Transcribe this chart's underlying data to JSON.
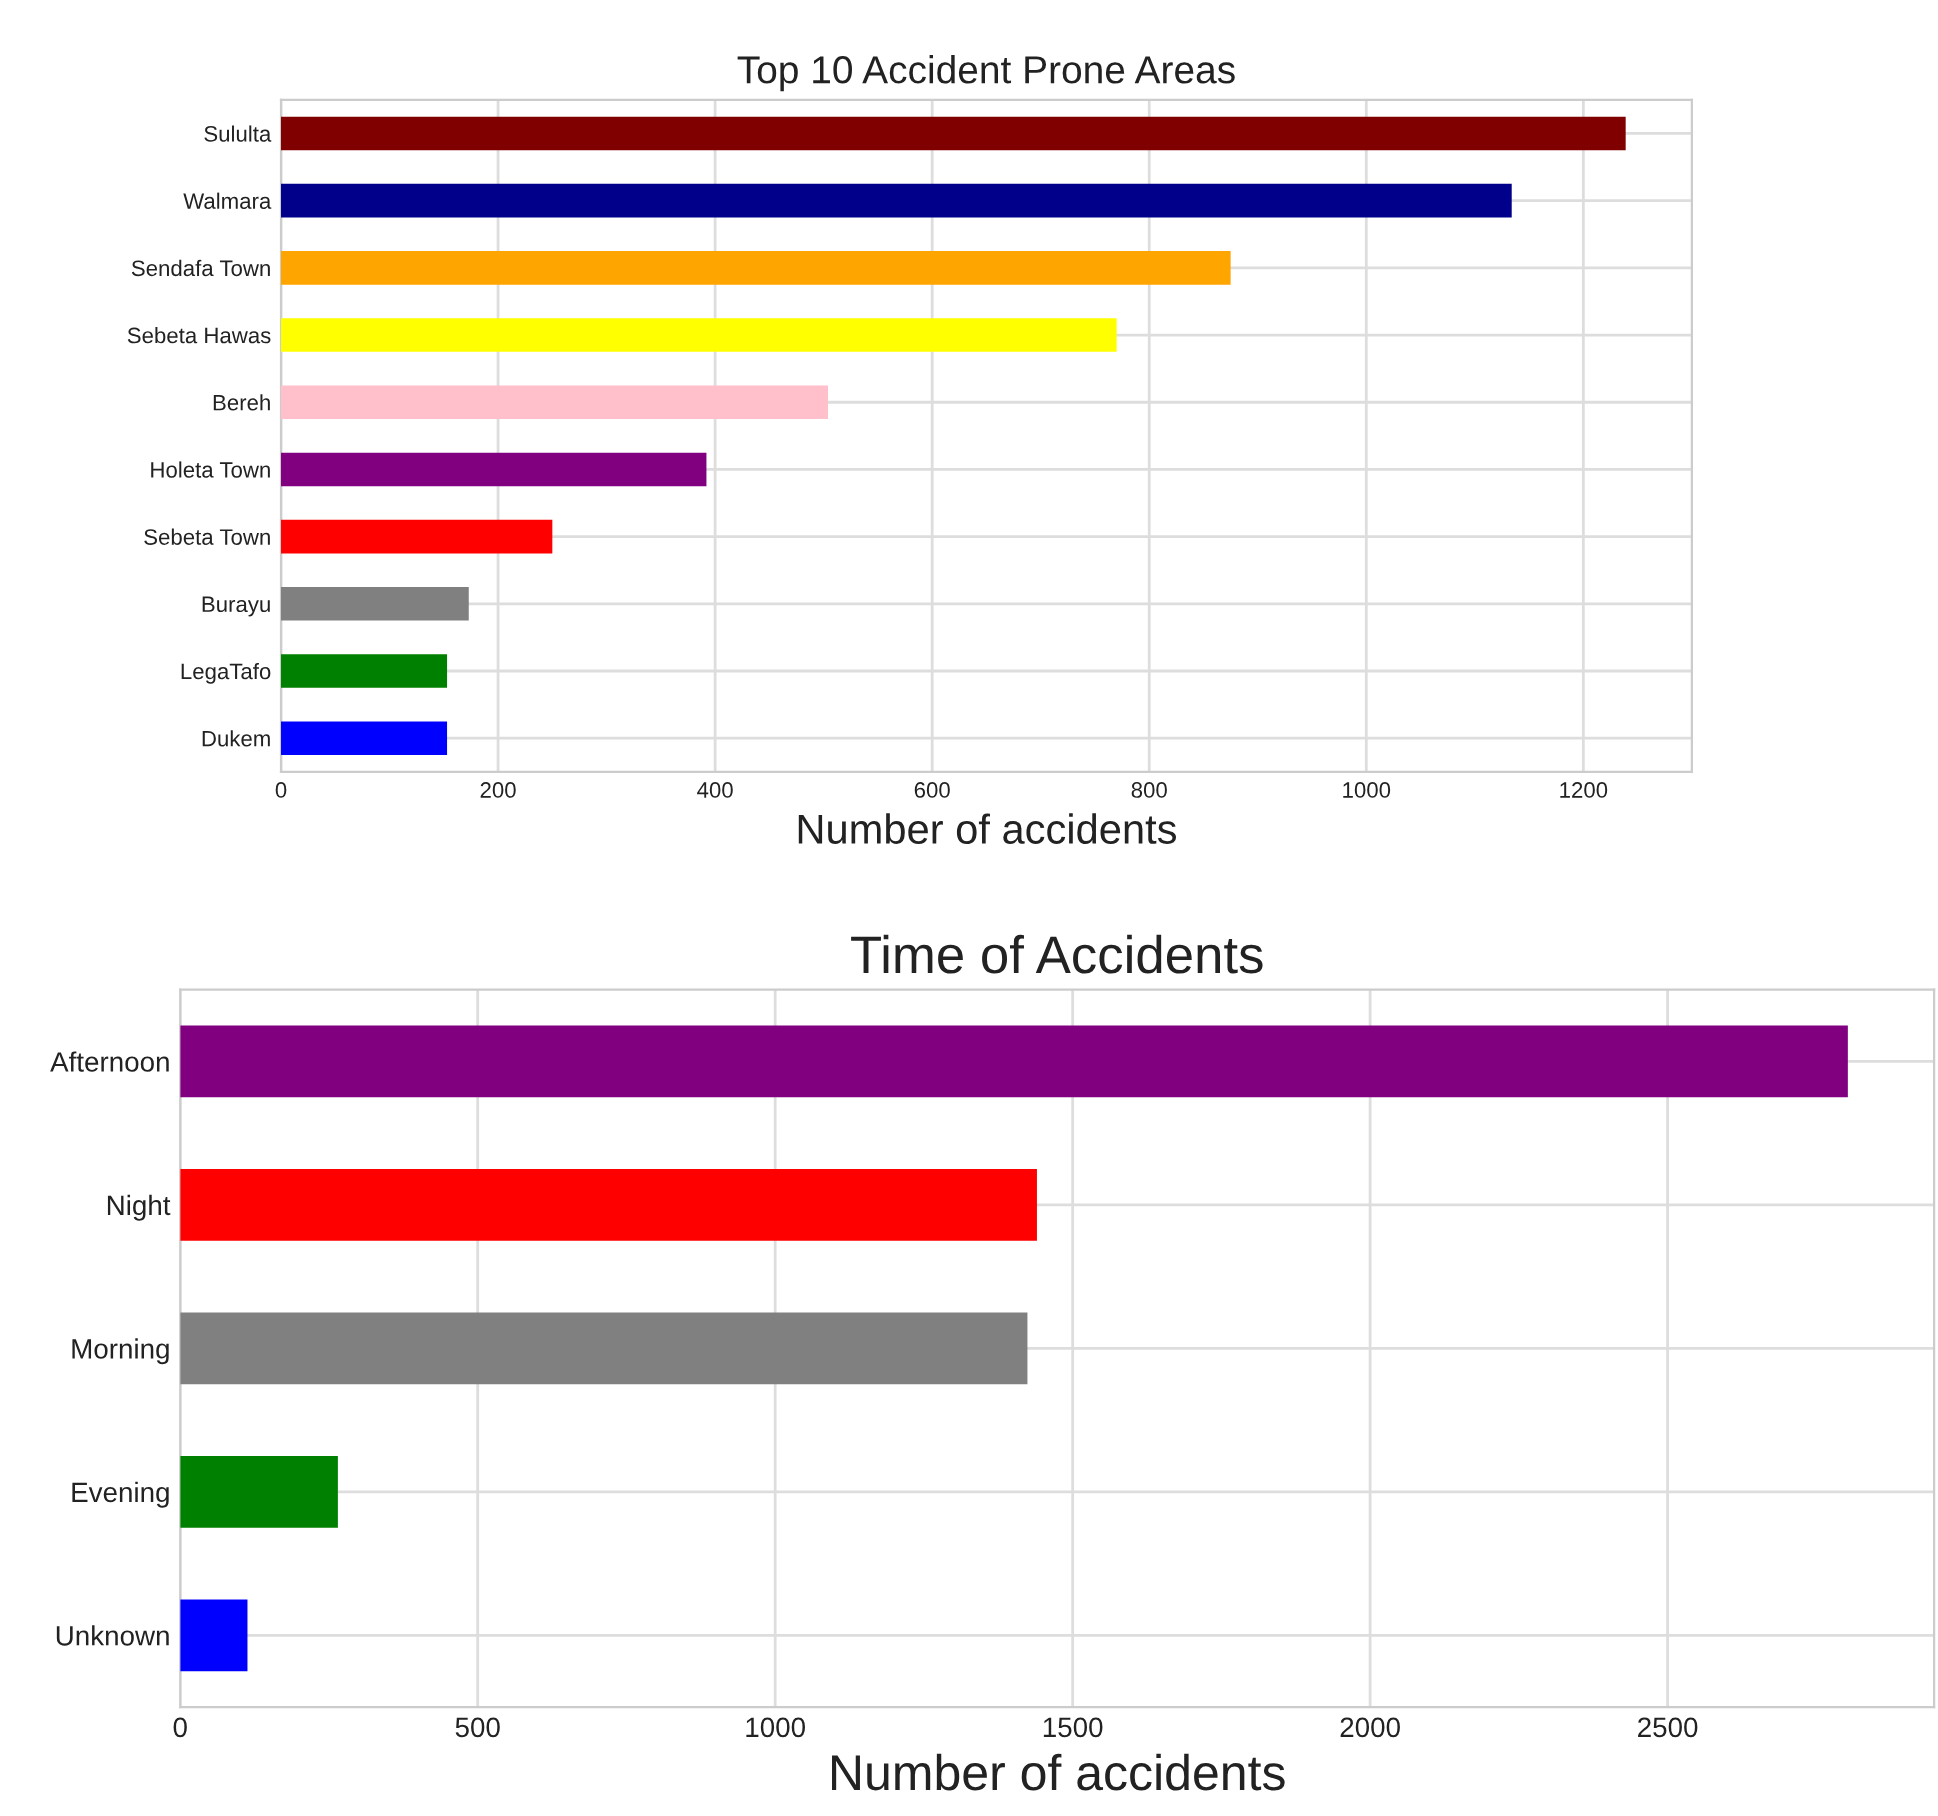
{
  "chart_data": [
    {
      "type": "bar",
      "orientation": "horizontal",
      "title": "Top 10 Accident Prone Areas",
      "xlabel": "Number of accidents",
      "categories": [
        "Sululta",
        "Walmara",
        "Sendafa Town",
        "Sebeta Hawas",
        "Bereh",
        "Holeta Town",
        "Sebeta Town",
        "Burayu",
        "LegaTafo",
        "Dukem"
      ],
      "values": [
        1239,
        1134,
        875,
        770,
        504,
        392,
        250,
        173,
        153,
        153
      ],
      "colors": [
        "#800000",
        "#00008b",
        "#ffa500",
        "#ffff00",
        "#ffc0cb",
        "#800080",
        "#ff0000",
        "#808080",
        "#008000",
        "#0000ff"
      ],
      "xlim": [
        0,
        1300
      ],
      "xticks": [
        0,
        200,
        400,
        600,
        800,
        1000,
        1200
      ],
      "grid": true,
      "legend": false
    },
    {
      "type": "bar",
      "orientation": "horizontal",
      "title": "Time of Accidents",
      "xlabel": "Number of accidents",
      "categories": [
        "Afternoon",
        "Night",
        "Morning",
        "Evening",
        "Unknown"
      ],
      "values": [
        2803,
        1440,
        1424,
        265,
        113
      ],
      "colors": [
        "#800080",
        "#ff0000",
        "#808080",
        "#008000",
        "#0000ff"
      ],
      "xlim": [
        0,
        2948
      ],
      "xticks": [
        0,
        500,
        1000,
        1500,
        2000,
        2500
      ],
      "grid": true,
      "legend": false
    }
  ]
}
